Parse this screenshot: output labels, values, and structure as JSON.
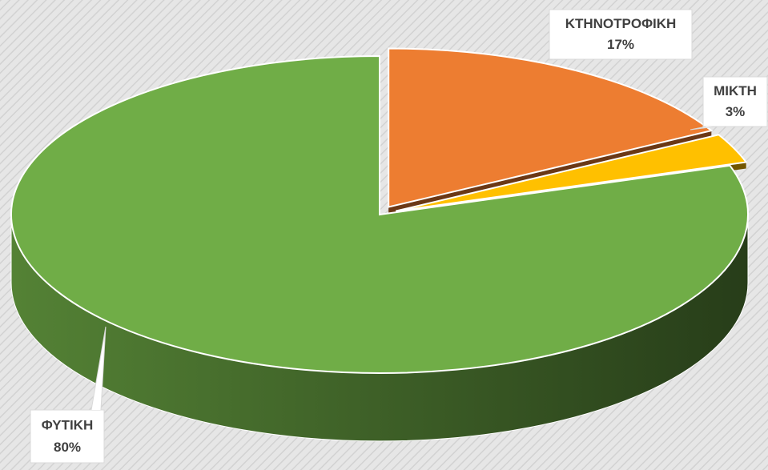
{
  "chart_data": {
    "type": "pie",
    "categories": [
      "ΚΤΗΝΟΤΡΟΦΙΚΗ",
      "ΜΙΚΤΗ",
      "ΦΥΤΙΚΗ"
    ],
    "values": [
      17,
      3,
      80
    ],
    "value_labels": [
      "17%",
      "3%",
      "80%"
    ],
    "colors": [
      "#ED7D31",
      "#FFC000",
      "#70AD47"
    ]
  }
}
